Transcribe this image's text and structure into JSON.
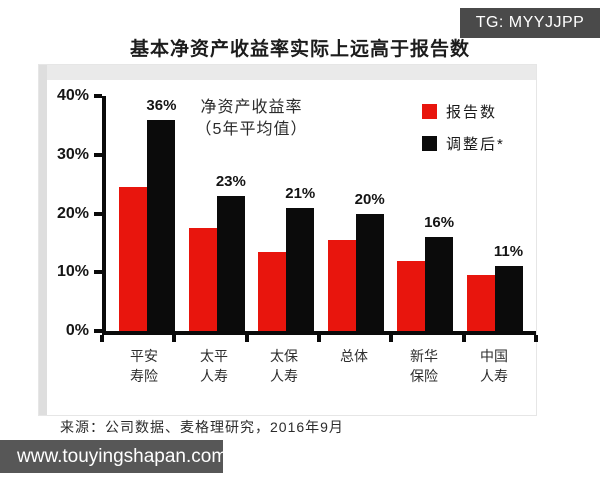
{
  "watermark_top": {
    "label": "TG: MYYJJPP"
  },
  "title": "基本净资产收益率实际上远高于报告数",
  "chart_data": {
    "type": "bar",
    "title": "基本净资产收益率实际上远高于报告数",
    "annotation": {
      "line1": "净资产收益率",
      "line2": "（5年平均值）"
    },
    "categories": [
      [
        "平安",
        "寿险"
      ],
      [
        "太平",
        "人寿"
      ],
      [
        "太保",
        "人寿"
      ],
      [
        "总体",
        ""
      ],
      [
        "新华",
        "保险"
      ],
      [
        "中国",
        "人寿"
      ]
    ],
    "series": [
      {
        "name": "报告数",
        "color": "#e8150d",
        "values": [
          24.5,
          17.5,
          13.5,
          15.5,
          12.0,
          9.5
        ]
      },
      {
        "name": "调整后*",
        "color": "#0b0b0b",
        "values": [
          36,
          23,
          21,
          20,
          16,
          11
        ]
      }
    ],
    "bar_labels": [
      "36%",
      "23%",
      "21%",
      "20%",
      "16%",
      "11%"
    ],
    "y_ticks": [
      "0%",
      "10%",
      "20%",
      "30%",
      "40%"
    ],
    "ylim": [
      0,
      40
    ],
    "grid": false,
    "legend_position": "top-right"
  },
  "source_note": "来源：公司数据、麦格理研究，2016年9月",
  "watermark_bottom": {
    "label": "www.touyingshapan.com"
  },
  "colors": {
    "reported_red": "#e8150d",
    "adjusted_black": "#0b0b0b",
    "badge_bg": "#4a4a4a",
    "web_bar_bg": "#575757",
    "frame_gray": "#eaeaea"
  }
}
